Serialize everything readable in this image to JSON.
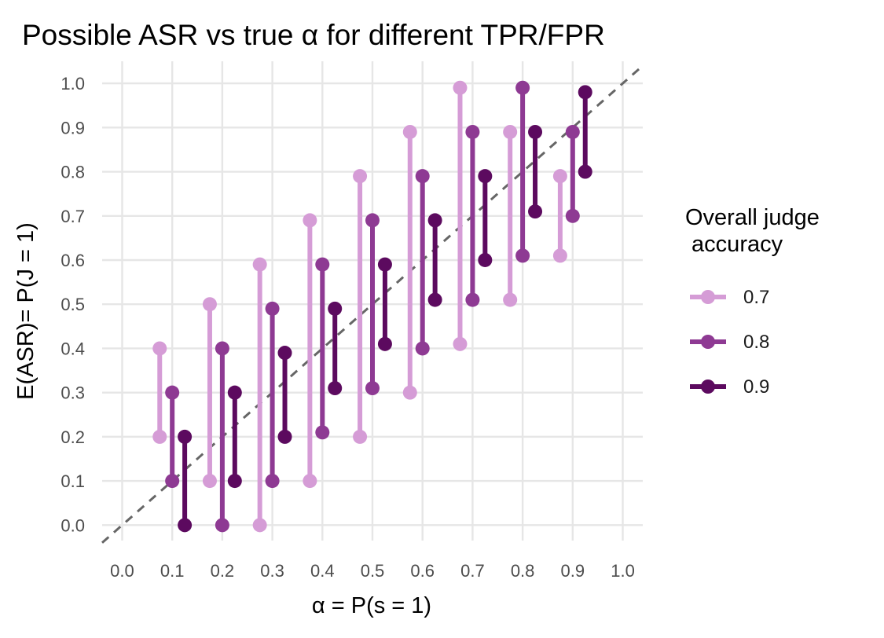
{
  "chart_data": {
    "type": "line",
    "title": "Possible ASR vs true α for different TPR/FPR",
    "xlabel": "α = P(s = 1)",
    "ylabel": "E(ASR)= P(J = 1)",
    "xlim": [
      -0.04,
      1.04
    ],
    "ylim": [
      -0.035,
      1.05
    ],
    "x_ticks": [
      "0.0",
      "0.1",
      "0.2",
      "0.3",
      "0.4",
      "0.5",
      "0.6",
      "0.7",
      "0.8",
      "0.9",
      "1.0"
    ],
    "y_ticks": [
      "0.0",
      "0.1",
      "0.2",
      "0.3",
      "0.4",
      "0.5",
      "0.6",
      "0.7",
      "0.8",
      "0.9",
      "1.0"
    ],
    "reference_line": "y = x (dashed)",
    "legend_title": "Overall judge\n accuracy",
    "legend_position": "right",
    "series": [
      {
        "name": "0.7",
        "color": "#d59cd6",
        "x": [
          0.1,
          0.2,
          0.3,
          0.4,
          0.5,
          0.6,
          0.7,
          0.8,
          0.9
        ],
        "low": [
          0.2,
          0.1,
          0.0,
          0.1,
          0.2,
          0.3,
          0.41,
          0.51,
          0.61
        ],
        "high": [
          0.4,
          0.5,
          0.59,
          0.69,
          0.79,
          0.89,
          0.99,
          0.89,
          0.79
        ]
      },
      {
        "name": "0.8",
        "color": "#8e3a93",
        "x": [
          0.1,
          0.2,
          0.3,
          0.4,
          0.5,
          0.6,
          0.7,
          0.8,
          0.9
        ],
        "low": [
          0.1,
          0.0,
          0.1,
          0.21,
          0.31,
          0.4,
          0.51,
          0.61,
          0.7
        ],
        "high": [
          0.3,
          0.4,
          0.49,
          0.59,
          0.69,
          0.79,
          0.89,
          0.99,
          0.89
        ]
      },
      {
        "name": "0.9",
        "color": "#5c0a5f",
        "x": [
          0.1,
          0.2,
          0.3,
          0.4,
          0.5,
          0.6,
          0.7,
          0.8,
          0.9
        ],
        "low": [
          0.0,
          0.1,
          0.2,
          0.31,
          0.41,
          0.51,
          0.6,
          0.71,
          0.8
        ],
        "high": [
          0.2,
          0.3,
          0.39,
          0.49,
          0.59,
          0.69,
          0.79,
          0.89,
          0.98
        ]
      }
    ]
  }
}
